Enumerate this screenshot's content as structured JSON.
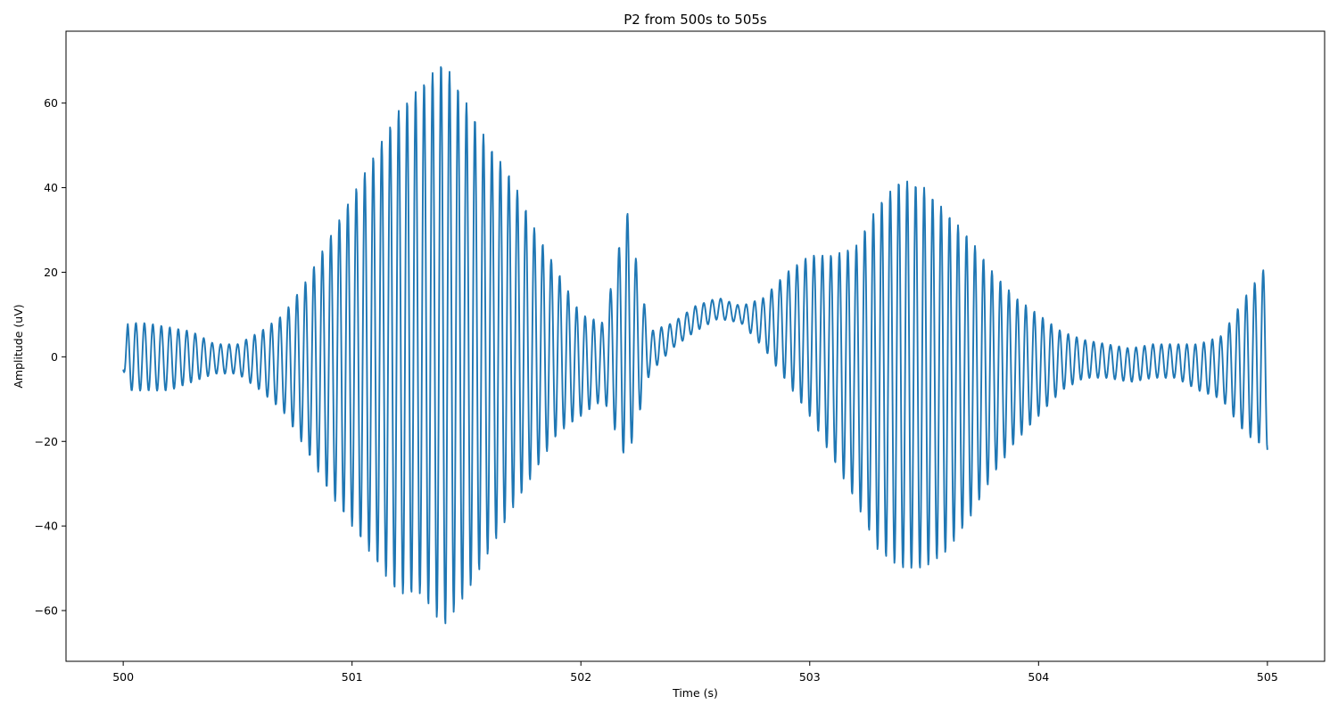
{
  "colors": {
    "line": "#1f77b4",
    "axes": "#000000",
    "background": "#ffffff"
  },
  "chart_data": {
    "type": "line",
    "title": "P2 from 500s to 505s",
    "xlabel": "Time (s)",
    "ylabel": "Amplitude (uV)",
    "xlim": [
      499.75,
      505.25
    ],
    "ylim": [
      -72,
      77
    ],
    "xticks": [
      500,
      501,
      502,
      503,
      504,
      505
    ],
    "xtick_labels": [
      "500",
      "501",
      "502",
      "503",
      "504",
      "505"
    ],
    "yticks": [
      -60,
      -40,
      -20,
      0,
      20,
      40,
      60
    ],
    "ytick_labels": [
      "−60",
      "−40",
      "−20",
      "0",
      "20",
      "40",
      "60"
    ],
    "grid": false,
    "legend": "none",
    "series": [
      {
        "sampling_rate_hz": 500,
        "start_time_s": 500.0,
        "oscillation_hz": 27,
        "envelope": {
          "t": [
            500.0,
            500.02,
            500.1,
            500.2,
            500.3,
            500.4,
            500.5,
            500.6,
            500.7,
            500.8,
            500.9,
            501.0,
            501.1,
            501.2,
            501.3,
            501.4,
            501.5,
            501.6,
            501.7,
            501.8,
            501.9,
            502.0,
            502.1,
            502.2,
            502.3,
            502.4,
            502.5,
            502.6,
            502.7,
            502.8,
            502.9,
            503.0,
            503.1,
            503.2,
            503.3,
            503.4,
            503.5,
            503.6,
            503.7,
            503.8,
            503.9,
            504.0,
            504.1,
            504.2,
            504.3,
            504.4,
            504.5,
            504.6,
            504.7,
            504.8,
            504.9,
            505.0
          ],
          "upper": [
            -3,
            8,
            8,
            7,
            6,
            3,
            3,
            6,
            10,
            18,
            28,
            38,
            48,
            58,
            64,
            70,
            60,
            50,
            42,
            30,
            20,
            10,
            8,
            35,
            6,
            8,
            12,
            14,
            12,
            14,
            20,
            24,
            24,
            26,
            36,
            42,
            40,
            34,
            28,
            20,
            14,
            10,
            6,
            4,
            3,
            2,
            3,
            3,
            3,
            5,
            14,
            22
          ],
          "lower": [
            -3,
            -8,
            -8,
            -8,
            -6,
            -4,
            -4,
            -8,
            -13,
            -22,
            -32,
            -40,
            -48,
            -56,
            -56,
            -64,
            -56,
            -46,
            -36,
            -27,
            -18,
            -14,
            -10,
            -25,
            -4,
            2,
            6,
            9,
            8,
            2,
            -6,
            -14,
            -24,
            -34,
            -46,
            -50,
            -50,
            -46,
            -38,
            -28,
            -20,
            -14,
            -8,
            -5,
            -5,
            -6,
            -5,
            -5,
            -8,
            -10,
            -18,
            -22
          ]
        }
      }
    ]
  }
}
